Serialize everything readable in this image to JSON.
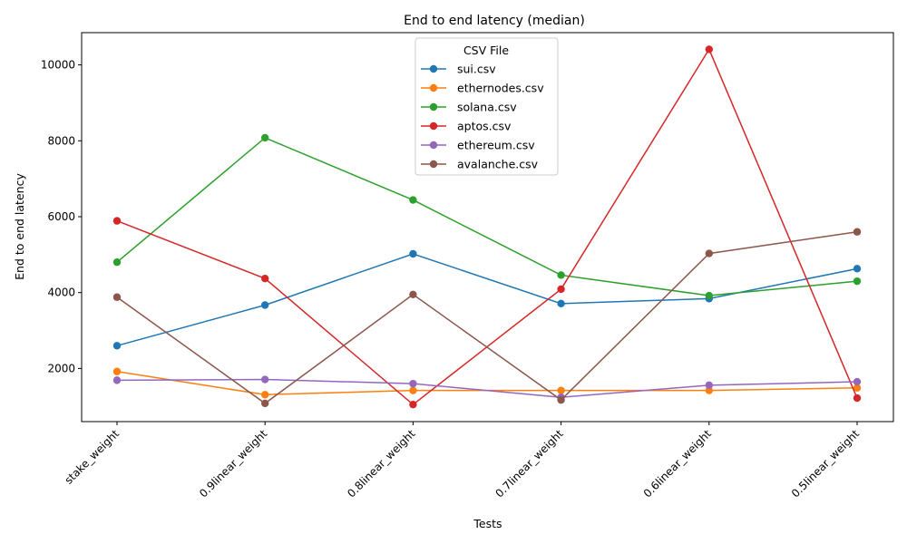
{
  "chart_data": {
    "type": "line",
    "title": "End to end latency (median)",
    "xlabel": "Tests",
    "ylabel": "End to end latency",
    "categories": [
      "stake_weight",
      "0.9linear_weight",
      "0.8linear_weight",
      "0.7linear_weight",
      "0.6linear_weight",
      "0.5linear_weight"
    ],
    "ylim": [
      600,
      10850
    ],
    "yticks": [
      2000,
      4000,
      6000,
      8000,
      10000
    ],
    "grid": false,
    "legend": {
      "title": "CSV File",
      "placement": "top-center"
    },
    "series": [
      {
        "name": "sui.csv",
        "color": "#1f77b4",
        "values": [
          2600,
          3670,
          5020,
          3710,
          3840,
          4630
        ]
      },
      {
        "name": "ethernodes.csv",
        "color": "#ff7f0e",
        "values": [
          1920,
          1310,
          1420,
          1420,
          1420,
          1490
        ]
      },
      {
        "name": "solana.csv",
        "color": "#2ca02c",
        "values": [
          4800,
          8080,
          6440,
          4460,
          3920,
          4300
        ]
      },
      {
        "name": "aptos.csv",
        "color": "#d62728",
        "values": [
          5890,
          4370,
          1050,
          4090,
          10410,
          1220
        ]
      },
      {
        "name": "ethereum.csv",
        "color": "#9467bd",
        "values": [
          1690,
          1710,
          1600,
          1240,
          1560,
          1650
        ]
      },
      {
        "name": "avalanche.csv",
        "color": "#8c564b",
        "values": [
          3880,
          1080,
          3950,
          1170,
          5030,
          5600
        ]
      }
    ]
  }
}
